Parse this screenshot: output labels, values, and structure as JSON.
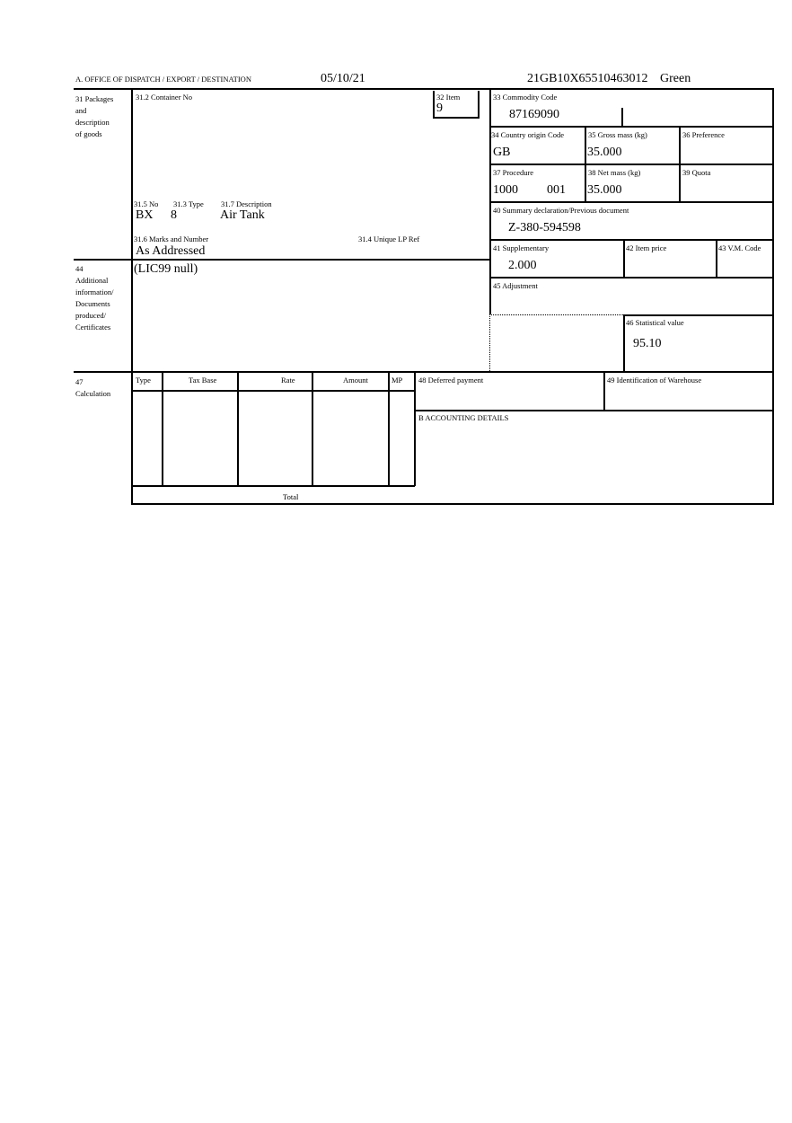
{
  "header": {
    "office": "A.  OFFICE OF DISPATCH / EXPORT / DESTINATION",
    "date": "05/10/21",
    "reference": "21GB10X65510463012",
    "route": "Green"
  },
  "box31": {
    "label_lines": [
      "31 Packages",
      "and",
      "description",
      "of goods"
    ],
    "container_label": "31.2 Container No",
    "no_label": "31.5 No",
    "type_label": "31.3 Type",
    "desc_label": "31.7 Description",
    "no_value": "BX",
    "type_value": "8",
    "desc_value": "Air Tank",
    "marks_label": "31.6 Marks and Number",
    "marks_value": "As Addressed",
    "lp_label": "31.4 Unique LP Ref"
  },
  "box32": {
    "label": "32 Item",
    "value": "9"
  },
  "box33": {
    "label": "33 Commodity Code",
    "value": "87169090"
  },
  "box34": {
    "label": "34 Country origin Code",
    "value": "GB"
  },
  "box35": {
    "label": "35 Gross mass (kg)",
    "value": "35.000"
  },
  "box36": {
    "label": "36 Preference"
  },
  "box37": {
    "label": "37 Procedure",
    "value1": "1000",
    "value2": "001"
  },
  "box38": {
    "label": "38 Net mass (kg)",
    "value": "35.000"
  },
  "box39": {
    "label": "39 Quota"
  },
  "box40": {
    "label": "40 Summary declaration/Previous document",
    "value": "Z-380-594598"
  },
  "box41": {
    "label": "41 Supplementary",
    "value": "2.000"
  },
  "box42": {
    "label": "42 Item price"
  },
  "box43": {
    "label": "43 V.M. Code"
  },
  "box44": {
    "label_lines": [
      "44",
      "Additional",
      "information/",
      "Documents",
      "produced/",
      "Certificates"
    ],
    "value": "(LIC99 null)"
  },
  "box45": {
    "label": "45 Adjustment"
  },
  "box46": {
    "label": "46 Statistical value",
    "value": "95.10"
  },
  "box47": {
    "label_lines": [
      "47",
      "Calculation"
    ],
    "columns": [
      "Type",
      "Tax Base",
      "Rate",
      "Amount",
      "MP"
    ],
    "total_label": "Total"
  },
  "box48": {
    "label": "48 Deferred payment"
  },
  "box49": {
    "label": "49 Identification of Warehouse"
  },
  "boxB": {
    "label": "B ACCOUNTING DETAILS"
  }
}
